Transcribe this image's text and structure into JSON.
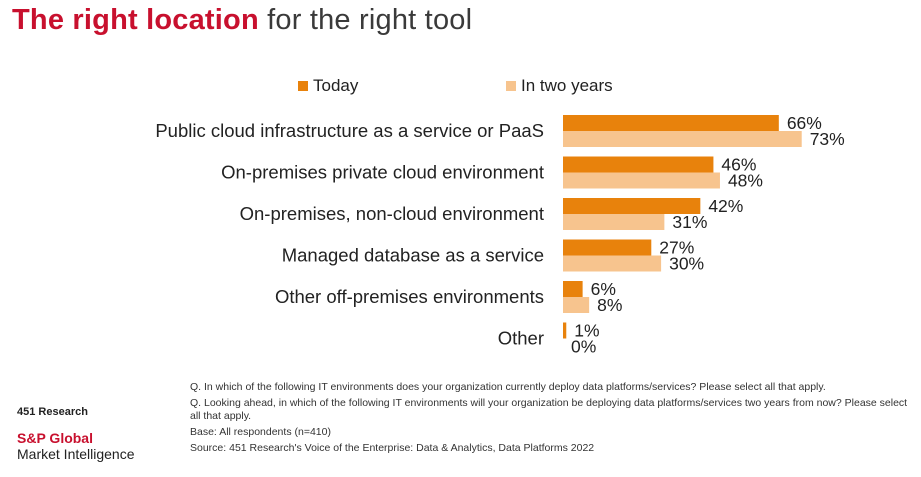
{
  "title": {
    "accent": "The right location",
    "rest": "for the right tool"
  },
  "colors": {
    "today": "#e8820c",
    "two_years": "#f7c48e",
    "accent": "#c8102e"
  },
  "chart_data": {
    "type": "bar",
    "orientation": "horizontal",
    "categories": [
      "Public cloud infrastructure as a service or PaaS",
      "On-premises private cloud environment",
      "On-premises, non-cloud environment",
      "Managed database as a service",
      "Other off-premises environments",
      "Other"
    ],
    "series": [
      {
        "name": "Today",
        "values": [
          66,
          46,
          42,
          27,
          6,
          1
        ],
        "labels": [
          "66%",
          "46%",
          "42%",
          "27%",
          "6%",
          "1%"
        ]
      },
      {
        "name": "In two years",
        "values": [
          73,
          48,
          31,
          30,
          8,
          0
        ],
        "labels": [
          "73%",
          "48%",
          "31%",
          "30%",
          "8%",
          "0%"
        ]
      }
    ],
    "legend_position": "top",
    "grid": false
  },
  "footnotes": {
    "q1": "Q. In which of the following IT environments does your organization currently deploy data platforms/services? Please select all that apply.",
    "q2": "Q. Looking ahead, in which of the following IT environments will your organization be deploying data platforms/services two years from now? Please select all that apply.",
    "base": "Base: All respondents (n=410)",
    "source": "Source: 451 Research's Voice of the Enterprise: Data & Analytics, Data Platforms 2022"
  },
  "brand": {
    "research": "451 Research",
    "company": "S&P Global",
    "division": "Market Intelligence"
  }
}
